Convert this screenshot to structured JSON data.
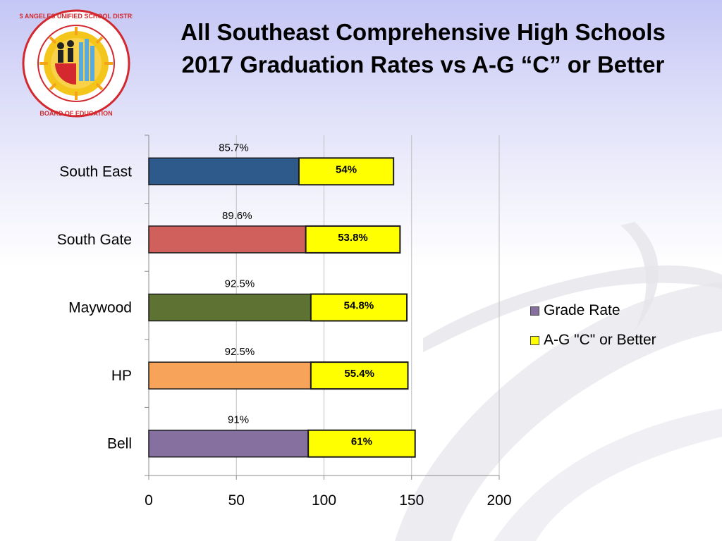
{
  "title_line1": "All Southeast Comprehensive High Schools",
  "title_line2": "2017 Graduation Rates vs A-G “C” or Better",
  "logo": {
    "ring_text_top": "LOS ANGELES UNIFIED SCHOOL DISTRICT",
    "ring_text_bottom": "BOARD OF EDUCATION"
  },
  "chart_data": {
    "type": "bar",
    "orientation": "horizontal",
    "stacked": true,
    "categories": [
      "South East",
      "South Gate",
      "Maywood",
      "HP",
      "Bell"
    ],
    "series": [
      {
        "name": "Grade Rate",
        "values": [
          85.7,
          89.6,
          92.5,
          92.5,
          91
        ],
        "labels": [
          "85.7%",
          "89.6%",
          "92.5%",
          "92.5%",
          "91%"
        ],
        "colors": [
          "#2e5a8b",
          "#d0605c",
          "#5e7233",
          "#f7a45a",
          "#8570a0"
        ],
        "legend_color": "#8570a0"
      },
      {
        "name": "A-G \"C\" or Better",
        "values": [
          54,
          53.8,
          54.8,
          55.4,
          61
        ],
        "labels": [
          "54%",
          "53.8%",
          "54.8%",
          "55.4%",
          "61%"
        ],
        "color": "#ffff00"
      }
    ],
    "x_ticks": [
      "0",
      "50",
      "100",
      "150",
      "200"
    ],
    "xlim": [
      0,
      200
    ],
    "grid": "vertical",
    "legend_position": "right"
  }
}
